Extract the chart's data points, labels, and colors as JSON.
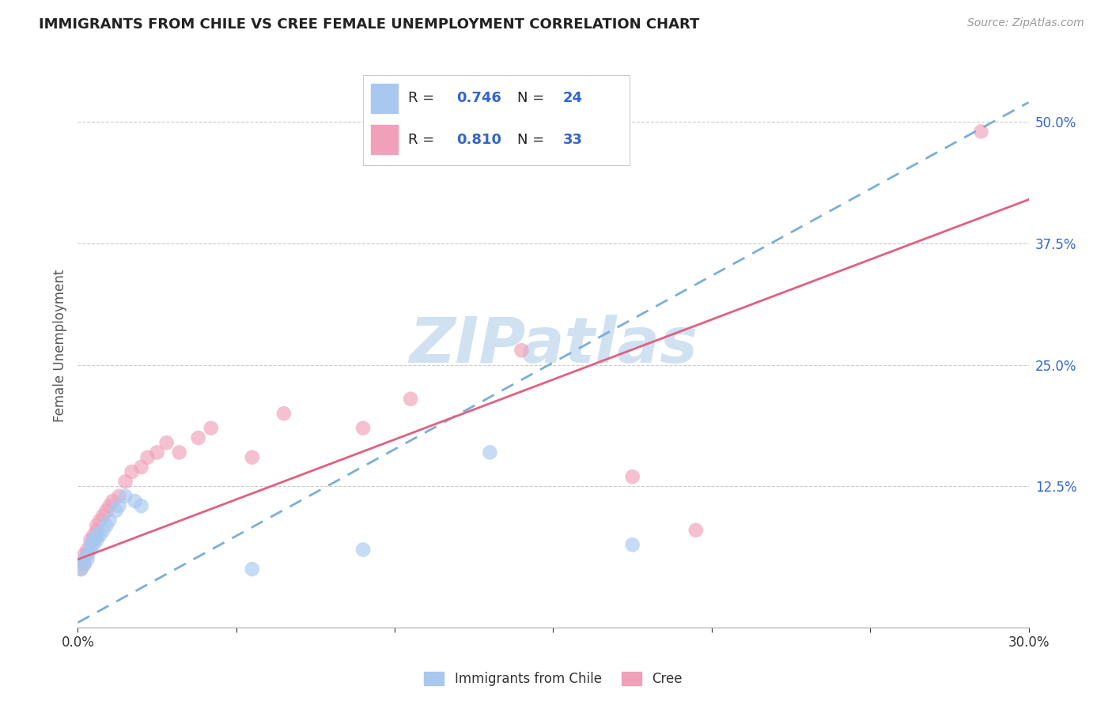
{
  "title": "IMMIGRANTS FROM CHILE VS CREE FEMALE UNEMPLOYMENT CORRELATION CHART",
  "source": "Source: ZipAtlas.com",
  "ylabel": "Female Unemployment",
  "y_tick_labels_right": [
    "12.5%",
    "25.0%",
    "37.5%",
    "50.0%"
  ],
  "xlim": [
    0.0,
    0.3
  ],
  "ylim": [
    -0.02,
    0.56
  ],
  "legend_labels": [
    "Immigrants from Chile",
    "Cree"
  ],
  "R_chile": "0.746",
  "N_chile": "24",
  "R_cree": "0.810",
  "N_cree": "33",
  "color_chile": "#A8C8F0",
  "color_cree": "#F0A0B8",
  "trendline_chile_color": "#7AAED8",
  "trendline_cree_color": "#E06080",
  "watermark": "ZIPatlas",
  "watermark_color": "#C8DCF0",
  "blue_label_color": "#3366CC",
  "chile_x": [
    0.001,
    0.002,
    0.002,
    0.003,
    0.003,
    0.004,
    0.004,
    0.005,
    0.005,
    0.006,
    0.006,
    0.007,
    0.008,
    0.009,
    0.01,
    0.012,
    0.013,
    0.015,
    0.018,
    0.02,
    0.055,
    0.09,
    0.13,
    0.175
  ],
  "chile_y": [
    0.04,
    0.045,
    0.05,
    0.05,
    0.055,
    0.06,
    0.065,
    0.065,
    0.07,
    0.07,
    0.075,
    0.075,
    0.08,
    0.085,
    0.09,
    0.1,
    0.105,
    0.115,
    0.11,
    0.105,
    0.04,
    0.06,
    0.16,
    0.065
  ],
  "cree_x": [
    0.001,
    0.002,
    0.002,
    0.003,
    0.003,
    0.004,
    0.005,
    0.005,
    0.006,
    0.006,
    0.007,
    0.008,
    0.009,
    0.01,
    0.011,
    0.013,
    0.015,
    0.017,
    0.02,
    0.022,
    0.025,
    0.028,
    0.032,
    0.038,
    0.042,
    0.055,
    0.065,
    0.09,
    0.105,
    0.14,
    0.175,
    0.195,
    0.285
  ],
  "cree_y": [
    0.04,
    0.045,
    0.055,
    0.055,
    0.06,
    0.07,
    0.07,
    0.075,
    0.08,
    0.085,
    0.09,
    0.095,
    0.1,
    0.105,
    0.11,
    0.115,
    0.13,
    0.14,
    0.145,
    0.155,
    0.16,
    0.17,
    0.16,
    0.175,
    0.185,
    0.155,
    0.2,
    0.185,
    0.215,
    0.265,
    0.135,
    0.08,
    0.49
  ],
  "chile_trendline_x0": 0.0,
  "chile_trendline_y0": -0.015,
  "chile_trendline_x1": 0.3,
  "chile_trendline_y1": 0.52,
  "cree_trendline_x0": 0.0,
  "cree_trendline_y0": 0.05,
  "cree_trendline_x1": 0.3,
  "cree_trendline_y1": 0.42
}
